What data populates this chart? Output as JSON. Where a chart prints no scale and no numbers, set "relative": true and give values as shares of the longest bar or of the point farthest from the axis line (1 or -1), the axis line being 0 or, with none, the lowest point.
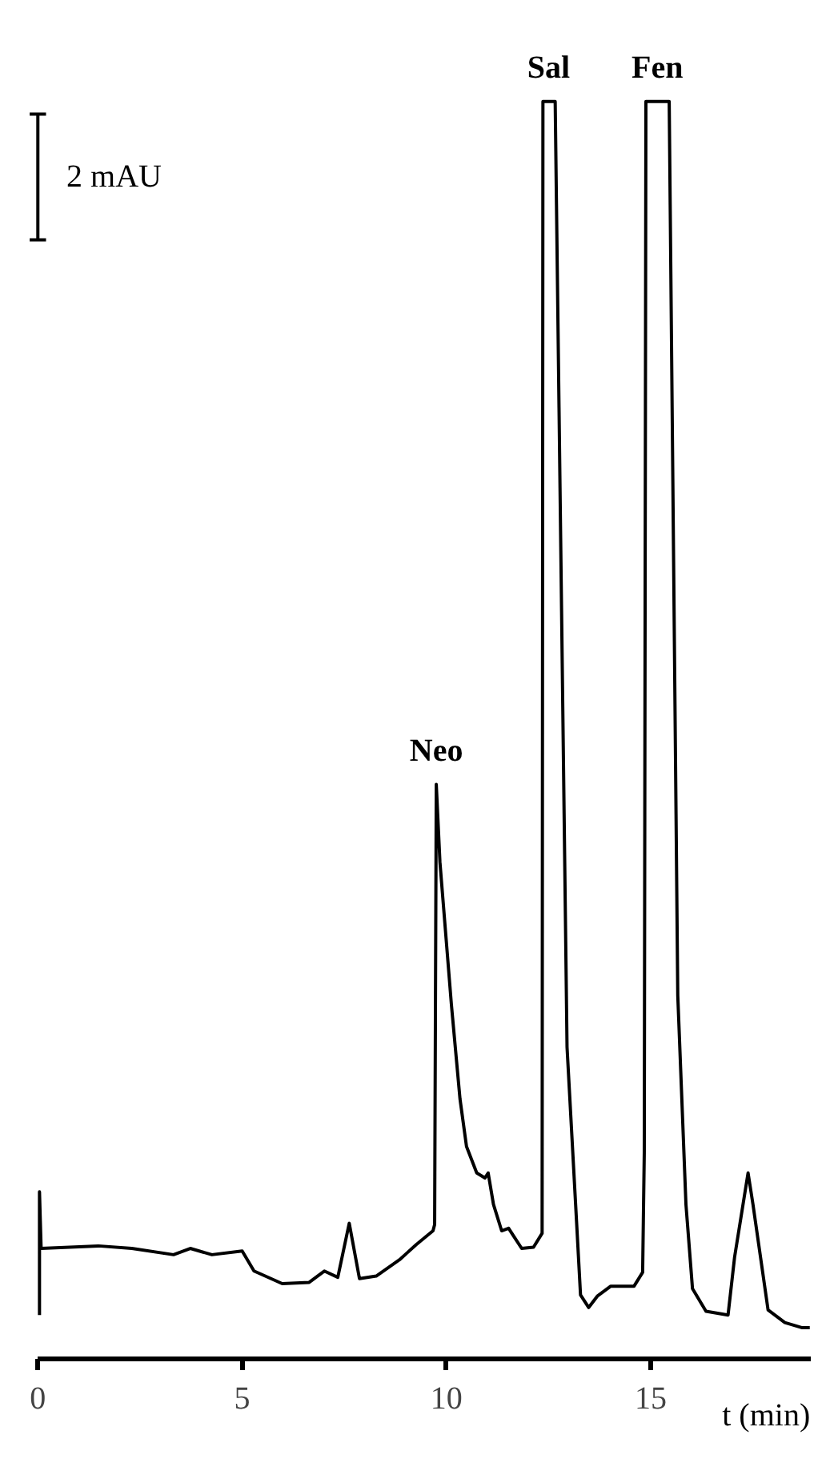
{
  "chart_data": {
    "type": "line",
    "relative": true,
    "xlabel": "t (min)",
    "xlim": [
      0,
      18.9
    ],
    "xticks": [
      0,
      5,
      10,
      15
    ],
    "annotations": [
      {
        "text": "Neo",
        "x": 9.75,
        "y": 0.457
      },
      {
        "text": "Sal",
        "x": 12.5,
        "y": 1.0
      },
      {
        "text": "Fen",
        "x": 15.16,
        "y": 1.0
      },
      "2 mAU"
    ],
    "series": [
      {
        "color": "#000000",
        "x": [
          0.04,
          0.04,
          0.08,
          1.48,
          2.3,
          3.32,
          3.73,
          4.26,
          5.0,
          5.29,
          5.98,
          6.64,
          7.01,
          7.34,
          7.62,
          7.87,
          8.28,
          8.85,
          9.26,
          9.67,
          9.71,
          9.75,
          9.84,
          10.12,
          10.33,
          10.49,
          10.74,
          10.94,
          11.02,
          11.15,
          11.35,
          11.52,
          11.64,
          11.84,
          12.13,
          12.34,
          12.36,
          12.66,
          12.95,
          13.16,
          13.28,
          13.48,
          13.69,
          14.02,
          14.59,
          14.8,
          14.84,
          14.88,
          15.45,
          15.66,
          15.86,
          16.02,
          16.35,
          16.89,
          17.05,
          17.38,
          17.5,
          17.87,
          18.28,
          18.69,
          18.89
        ],
        "values": [
          0.035,
          0.133,
          0.088,
          0.09,
          0.088,
          0.083,
          0.088,
          0.083,
          0.086,
          0.07,
          0.06,
          0.061,
          0.07,
          0.065,
          0.108,
          0.064,
          0.066,
          0.079,
          0.091,
          0.102,
          0.107,
          0.457,
          0.395,
          0.282,
          0.207,
          0.169,
          0.148,
          0.144,
          0.148,
          0.123,
          0.102,
          0.104,
          0.098,
          0.088,
          0.089,
          0.1,
          1.0,
          1.0,
          0.248,
          0.123,
          0.051,
          0.041,
          0.05,
          0.058,
          0.058,
          0.069,
          0.164,
          1.0,
          1.0,
          0.289,
          0.123,
          0.056,
          0.038,
          0.035,
          0.081,
          0.148,
          0.123,
          0.039,
          0.029,
          0.025,
          0.025
        ]
      }
    ]
  }
}
